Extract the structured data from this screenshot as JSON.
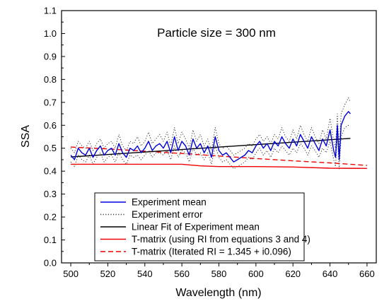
{
  "chart_data": {
    "type": "line",
    "annotation": "Particle size = 300 nm",
    "xlabel": "Wavelength (nm)",
    "ylabel": "SSA",
    "xlim": [
      495,
      665
    ],
    "ylim": [
      0.0,
      1.1
    ],
    "xticks": [
      "500",
      "520",
      "540",
      "560",
      "580",
      "600",
      "620",
      "640",
      "660"
    ],
    "yticks": [
      "0.0",
      "0.1",
      "0.2",
      "0.3",
      "0.4",
      "0.5",
      "0.6",
      "0.7",
      "0.8",
      "0.9",
      "1.0",
      "1.1"
    ],
    "grid": false,
    "legend_position": "bottom-center",
    "series": [
      {
        "name": "Experiment mean",
        "color": "#0000dd",
        "style": "solid",
        "x": [
          500,
          502,
          504,
          506,
          508,
          510,
          512,
          514,
          516,
          518,
          520,
          522,
          524,
          526,
          528,
          530,
          532,
          534,
          536,
          538,
          540,
          542,
          544,
          546,
          548,
          550,
          552,
          554,
          556,
          558,
          560,
          562,
          564,
          566,
          568,
          570,
          572,
          574,
          576,
          578,
          580,
          582,
          584,
          586,
          588,
          590,
          592,
          594,
          596,
          598,
          600,
          602,
          604,
          606,
          608,
          610,
          612,
          614,
          616,
          618,
          620,
          622,
          624,
          626,
          628,
          630,
          632,
          634,
          636,
          638,
          640,
          642,
          643,
          644,
          645,
          646,
          648,
          650,
          651
        ],
        "y": [
          0.47,
          0.45,
          0.5,
          0.48,
          0.47,
          0.5,
          0.46,
          0.49,
          0.51,
          0.47,
          0.49,
          0.5,
          0.47,
          0.52,
          0.48,
          0.46,
          0.5,
          0.49,
          0.51,
          0.48,
          0.5,
          0.53,
          0.49,
          0.51,
          0.52,
          0.5,
          0.53,
          0.48,
          0.55,
          0.49,
          0.53,
          0.51,
          0.47,
          0.54,
          0.5,
          0.52,
          0.48,
          0.51,
          0.46,
          0.55,
          0.49,
          0.47,
          0.48,
          0.46,
          0.44,
          0.45,
          0.46,
          0.47,
          0.49,
          0.48,
          0.51,
          0.53,
          0.5,
          0.52,
          0.49,
          0.53,
          0.51,
          0.55,
          0.52,
          0.5,
          0.54,
          0.51,
          0.56,
          0.53,
          0.5,
          0.55,
          0.52,
          0.49,
          0.54,
          0.51,
          0.58,
          0.49,
          0.46,
          0.6,
          0.45,
          0.6,
          0.64,
          0.66,
          0.65
        ]
      },
      {
        "name": "Experiment error",
        "color": "#333333",
        "style": "dotted",
        "x": [
          500,
          502,
          504,
          506,
          508,
          510,
          512,
          514,
          516,
          518,
          520,
          522,
          524,
          526,
          528,
          530,
          532,
          534,
          536,
          538,
          540,
          542,
          544,
          546,
          548,
          550,
          552,
          554,
          556,
          558,
          560,
          562,
          564,
          566,
          568,
          570,
          572,
          574,
          576,
          578,
          580,
          582,
          584,
          586,
          588,
          590,
          592,
          594,
          596,
          598,
          600,
          602,
          604,
          606,
          608,
          610,
          612,
          614,
          616,
          618,
          620,
          622,
          624,
          626,
          628,
          630,
          632,
          634,
          636,
          638,
          640,
          642,
          643,
          644,
          645,
          646,
          648,
          650,
          651
        ],
        "upper": [
          0.5,
          0.48,
          0.53,
          0.51,
          0.5,
          0.53,
          0.49,
          0.52,
          0.54,
          0.5,
          0.52,
          0.53,
          0.5,
          0.56,
          0.51,
          0.49,
          0.53,
          0.52,
          0.55,
          0.51,
          0.53,
          0.57,
          0.52,
          0.54,
          0.56,
          0.53,
          0.57,
          0.51,
          0.59,
          0.52,
          0.57,
          0.54,
          0.5,
          0.58,
          0.53,
          0.56,
          0.51,
          0.54,
          0.49,
          0.59,
          0.52,
          0.5,
          0.51,
          0.49,
          0.47,
          0.48,
          0.49,
          0.5,
          0.52,
          0.51,
          0.54,
          0.56,
          0.53,
          0.55,
          0.52,
          0.56,
          0.54,
          0.59,
          0.55,
          0.53,
          0.58,
          0.54,
          0.6,
          0.56,
          0.53,
          0.59,
          0.55,
          0.52,
          0.58,
          0.54,
          0.63,
          0.53,
          0.5,
          0.65,
          0.49,
          0.65,
          0.69,
          0.72,
          0.7
        ],
        "lower": [
          0.44,
          0.42,
          0.47,
          0.45,
          0.44,
          0.47,
          0.43,
          0.46,
          0.48,
          0.44,
          0.46,
          0.47,
          0.44,
          0.48,
          0.45,
          0.43,
          0.47,
          0.46,
          0.47,
          0.45,
          0.47,
          0.49,
          0.46,
          0.48,
          0.48,
          0.47,
          0.49,
          0.45,
          0.51,
          0.46,
          0.49,
          0.48,
          0.44,
          0.5,
          0.47,
          0.48,
          0.45,
          0.48,
          0.43,
          0.51,
          0.46,
          0.44,
          0.45,
          0.43,
          0.41,
          0.42,
          0.43,
          0.44,
          0.46,
          0.45,
          0.48,
          0.5,
          0.47,
          0.49,
          0.46,
          0.5,
          0.48,
          0.51,
          0.49,
          0.47,
          0.5,
          0.48,
          0.52,
          0.5,
          0.47,
          0.51,
          0.49,
          0.46,
          0.5,
          0.48,
          0.53,
          0.45,
          0.42,
          0.55,
          0.41,
          0.55,
          0.59,
          0.6,
          0.6
        ]
      },
      {
        "name": "Linear Fit of Experiment mean",
        "color": "#000000",
        "style": "solid",
        "x": [
          500,
          651
        ],
        "y": [
          0.462,
          0.543
        ]
      },
      {
        "name": "T-matrix (using RI from equations 3 and 4)",
        "color": "#ee0000",
        "style": "solid",
        "x": [
          500,
          520,
          540,
          560,
          570,
          580,
          600,
          620,
          640,
          660
        ],
        "y": [
          0.43,
          0.43,
          0.43,
          0.43,
          0.423,
          0.42,
          0.42,
          0.418,
          0.413,
          0.412
        ]
      },
      {
        "name": "T-matrix (Iterated RI = 1.345 + i0.096)",
        "color": "#ee0000",
        "style": "dashed",
        "x": [
          500,
          520,
          540,
          560,
          580,
          600,
          620,
          640,
          660
        ],
        "y": [
          0.505,
          0.497,
          0.487,
          0.477,
          0.466,
          0.455,
          0.445,
          0.436,
          0.425
        ]
      }
    ]
  }
}
